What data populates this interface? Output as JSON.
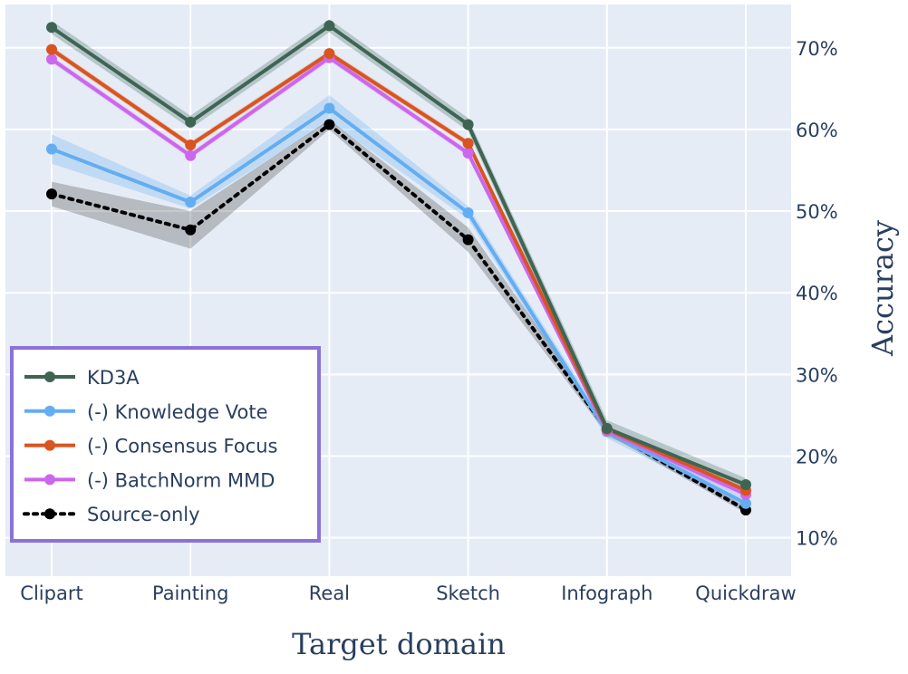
{
  "chart_data": {
    "type": "line",
    "xlabel": "Target domain",
    "ylabel": "Accuracy",
    "categories": [
      "Clipart",
      "Painting",
      "Real",
      "Sketch",
      "Infograph",
      "Quickdraw"
    ],
    "y_ticks": [
      "10%",
      "20%",
      "30%",
      "40%",
      "50%",
      "60%",
      "70%"
    ],
    "ylim": [
      5.3,
      75.3
    ],
    "y_axis_side": "right",
    "grid": true,
    "legend_position": "bottom-left",
    "series": [
      {
        "name": "KD3A",
        "color": "#3e6553",
        "dash": "solid",
        "values": [
          72.5,
          60.9,
          72.7,
          60.6,
          23.4,
          16.5
        ],
        "band": [
          [
            71.7,
            73.3
          ],
          [
            60.1,
            61.7
          ],
          [
            71.9,
            73.5
          ],
          [
            59.8,
            61.4
          ],
          [
            22.4,
            24.4
          ],
          [
            15.7,
            17.3
          ]
        ]
      },
      {
        "name": "(-) Knowledge Vote",
        "color": "#63adf2",
        "dash": "solid",
        "values": [
          57.6,
          51.1,
          62.6,
          49.8,
          23.0,
          14.2
        ],
        "band": [
          [
            55.8,
            59.4
          ],
          [
            50.3,
            51.9
          ],
          [
            61.0,
            64.2
          ],
          [
            49.0,
            50.6
          ],
          [
            22.2,
            23.8
          ],
          [
            13.6,
            14.8
          ]
        ]
      },
      {
        "name": "(-) Consensus Focus",
        "color": "#d9541e",
        "dash": "solid",
        "values": [
          69.8,
          58.1,
          69.3,
          58.3,
          23.3,
          15.8
        ],
        "band": [
          [
            69.4,
            70.2
          ],
          [
            57.7,
            58.5
          ],
          [
            68.9,
            69.7
          ],
          [
            57.9,
            58.7
          ],
          [
            22.9,
            23.7
          ],
          [
            15.4,
            16.2
          ]
        ]
      },
      {
        "name": "(-) BatchNorm MMD",
        "color": "#cc66ee",
        "dash": "solid",
        "values": [
          68.6,
          56.8,
          68.8,
          57.1,
          23.1,
          15.3
        ],
        "band": [
          [
            68.2,
            69.0
          ],
          [
            56.4,
            57.2
          ],
          [
            68.4,
            69.2
          ],
          [
            56.7,
            57.5
          ],
          [
            22.7,
            23.5
          ],
          [
            14.9,
            15.7
          ]
        ]
      },
      {
        "name": "Source-only",
        "color": "#000000",
        "dash": "dot",
        "values": [
          52.1,
          47.7,
          60.6,
          46.5,
          23.2,
          13.4
        ],
        "band": [
          [
            50.6,
            53.6
          ],
          [
            45.4,
            50.0
          ],
          [
            60.0,
            61.2
          ],
          [
            45.0,
            48.0
          ],
          [
            22.7,
            23.7
          ],
          [
            13.0,
            13.8
          ]
        ]
      }
    ],
    "band_colors": {
      "KD3A": "rgba(62,101,83,0.28)",
      "(-) Knowledge Vote": "rgba(99,173,242,0.28)",
      "(-) Consensus Focus": "rgba(217,84,30,0.22)",
      "(-) BatchNorm MMD": "rgba(204,102,238,0.22)",
      "Source-only": "rgba(60,60,60,0.28)"
    },
    "legend_border_color": "#8b72d9",
    "plot_background": "#e5ecf6"
  }
}
